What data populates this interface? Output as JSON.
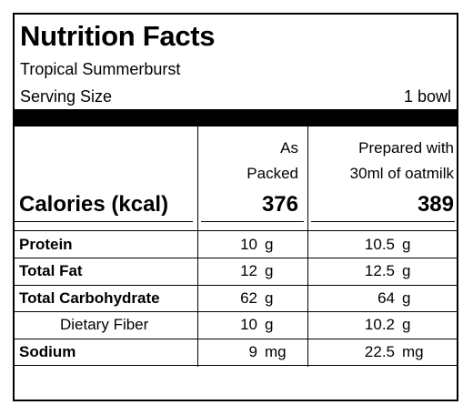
{
  "label": {
    "title": "Nutrition Facts",
    "product": "Tropical Summerburst",
    "serving_size_label": "Serving Size",
    "serving_size_value": "1 bowl",
    "columns": {
      "packed_line1": "As",
      "packed_line2": "Packed",
      "prepared_line1": "Prepared with",
      "prepared_line2": "30ml of oatmilk"
    },
    "calories": {
      "label": "Calories (kcal)",
      "packed": "376",
      "prepared": "389"
    },
    "nutrients": [
      {
        "name": "Protein",
        "packed": "10",
        "packed_unit": "g",
        "prepared": "10.5",
        "prepared_unit": "g",
        "bold": true
      },
      {
        "name": "Total Fat",
        "packed": "12",
        "packed_unit": "g",
        "prepared": "12.5",
        "prepared_unit": "g",
        "bold": true
      },
      {
        "name": "Total Carbohydrate",
        "packed": "62",
        "packed_unit": "g",
        "prepared": "64",
        "prepared_unit": "g",
        "bold": true
      },
      {
        "name": "Dietary Fiber",
        "packed": "10",
        "packed_unit": "g",
        "prepared": "10.2",
        "prepared_unit": "g",
        "bold": false
      },
      {
        "name": "Sodium",
        "packed": "9",
        "packed_unit": "mg",
        "prepared": "22.5",
        "prepared_unit": "mg",
        "bold": true
      }
    ]
  }
}
